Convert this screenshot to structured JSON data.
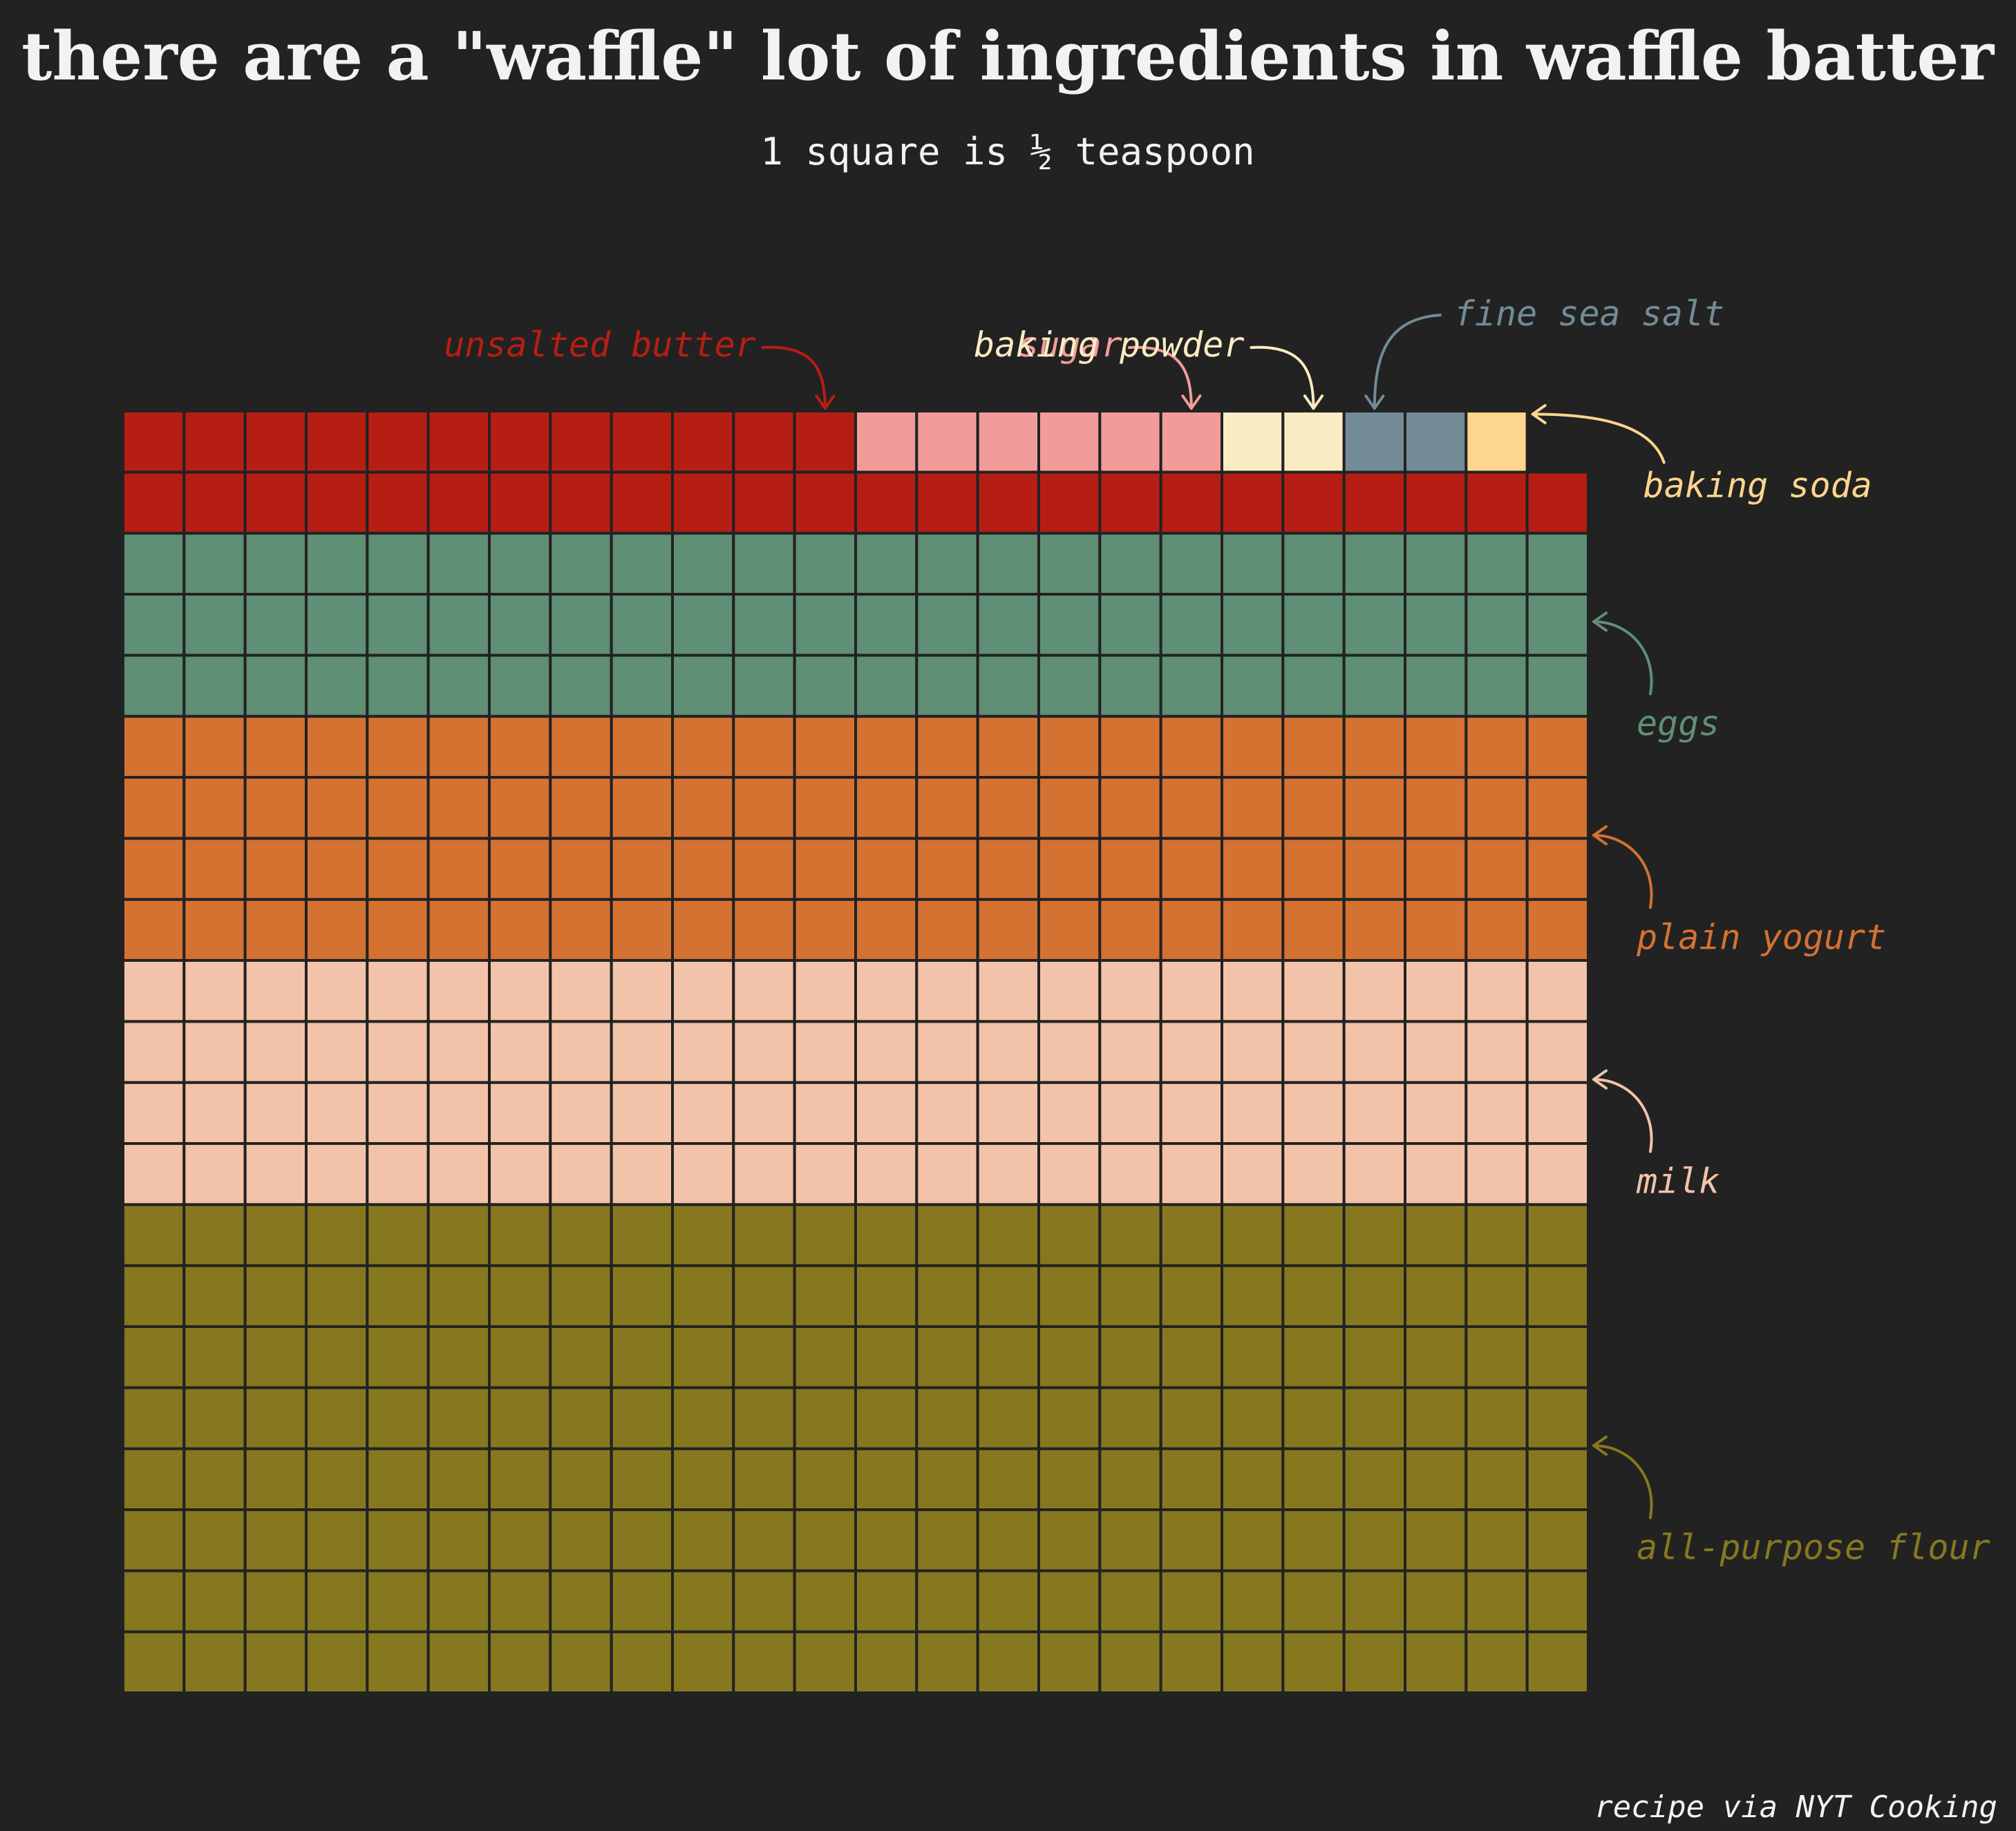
{
  "chart_data": {
    "type": "waffle",
    "title": "there are a \"waffle\" lot of ingredients in waffle batter",
    "subtitle": "1 square is ½ teaspoon",
    "caption": "recipe via NYT Cooking",
    "columns": 24,
    "unit": "½ teaspoon",
    "fill_order": "bottom-up, left-to-right",
    "grid_line_color": "#222222",
    "background": "#222222",
    "series": [
      {
        "name": "all-purpose flour",
        "value": 192,
        "color": "#86781f"
      },
      {
        "name": "milk",
        "value": 96,
        "color": "#f2c3a9"
      },
      {
        "name": "plain yogurt",
        "value": 96,
        "color": "#d37231"
      },
      {
        "name": "eggs",
        "value": 72,
        "color": "#5f8f75"
      },
      {
        "name": "unsalted butter",
        "value": 36,
        "color": "#b71e13"
      },
      {
        "name": "sugar",
        "value": 6,
        "color": "#f29c9a"
      },
      {
        "name": "baking powder",
        "value": 2,
        "color": "#f9ebc3"
      },
      {
        "name": "fine sea salt",
        "value": 2,
        "color": "#728b96"
      },
      {
        "name": "baking soda",
        "value": 1,
        "color": "#fdd58e"
      }
    ]
  }
}
